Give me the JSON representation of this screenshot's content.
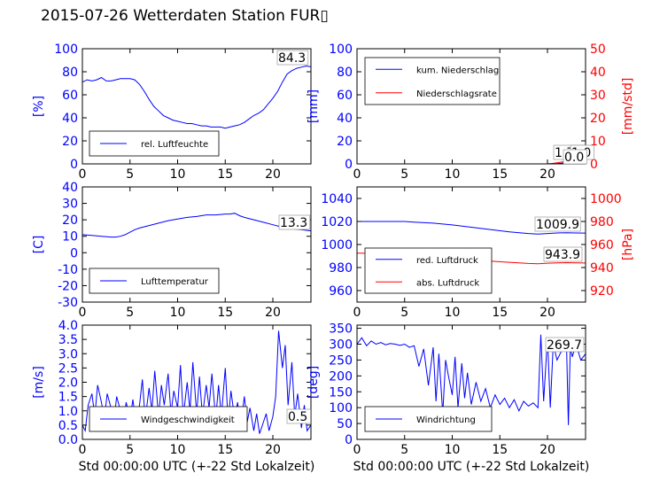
{
  "title": "2015-07-26 Wetterdaten Station FUR▯",
  "colors": {
    "left_axis": "#0000ff",
    "right_axis": "#ff0000",
    "frame": "#000000"
  },
  "chart_data": [
    {
      "type": "line",
      "panel": "humidity",
      "ylabel": "[%]",
      "xlim": [
        0,
        24
      ],
      "xticks": [
        0,
        5,
        10,
        15,
        20
      ],
      "ylim": [
        0,
        100
      ],
      "yticks": [
        0,
        20,
        40,
        60,
        80,
        100
      ],
      "legend": "lower-left",
      "last_value_label": "84.3",
      "series": [
        {
          "name": "rel. Luftfeuchte",
          "color": "#0000ff",
          "x": [
            0,
            0.5,
            1,
            1.5,
            2,
            2.5,
            3,
            3.5,
            4,
            4.5,
            5,
            5.5,
            6,
            6.5,
            7,
            7.5,
            8,
            8.5,
            9,
            9.5,
            10,
            10.5,
            11,
            11.5,
            12,
            12.5,
            13,
            13.5,
            14,
            14.5,
            15,
            15.5,
            16,
            16.5,
            17,
            17.5,
            18,
            18.5,
            19,
            19.5,
            20,
            20.5,
            21,
            21.5,
            22,
            22.5,
            23,
            23.5,
            24
          ],
          "y": [
            71,
            73,
            72,
            73,
            75,
            72,
            72,
            73,
            74,
            74,
            74,
            73,
            69,
            63,
            56,
            50,
            46,
            42,
            40,
            38,
            37,
            36,
            35,
            35,
            34,
            33,
            33,
            32,
            32,
            32,
            31,
            32,
            33,
            34,
            36,
            39,
            42,
            44,
            47,
            52,
            57,
            63,
            71,
            78,
            81,
            83,
            84,
            85,
            84.3
          ]
        }
      ]
    },
    {
      "type": "line",
      "panel": "precipitation",
      "ylabel": "[mm]",
      "ylabel_right": "[mm/std]",
      "xlim": [
        0,
        24
      ],
      "xticks": [
        0,
        5,
        10,
        15,
        20
      ],
      "ylim": [
        0,
        100
      ],
      "yticks": [
        0,
        20,
        40,
        60,
        80,
        100
      ],
      "ylim_right": [
        0,
        50
      ],
      "yticks_right": [
        0,
        10,
        20,
        30,
        40,
        50
      ],
      "legend": "top-left",
      "last_value_labels": [
        "1.70",
        "1.0",
        "0.0"
      ],
      "series": [
        {
          "name": "kum. Niederschlag",
          "color": "#0000ff",
          "axis": "left",
          "x": [
            0,
            20,
            21,
            21.5,
            22,
            24
          ],
          "y": [
            0,
            0,
            0.2,
            0.6,
            1.2,
            1.7
          ]
        },
        {
          "name": "Niederschlagsrate",
          "color": "#ff0000",
          "axis": "right",
          "x": [
            0,
            20,
            20.5,
            21,
            21.5,
            22,
            22.5,
            23,
            24
          ],
          "y": [
            0,
            0,
            0.2,
            0.5,
            0.8,
            1.0,
            0.6,
            0.2,
            0.0
          ]
        }
      ]
    },
    {
      "type": "line",
      "panel": "temperature",
      "ylabel": "[C]",
      "xlim": [
        0,
        24
      ],
      "xticks": [
        0,
        5,
        10,
        15,
        20
      ],
      "ylim": [
        -30,
        40
      ],
      "yticks": [
        -30,
        -20,
        -10,
        0,
        10,
        20,
        30,
        40
      ],
      "legend": "lower-left",
      "last_value_label": "13.3",
      "series": [
        {
          "name": "Lufttemperatur",
          "color": "#0000ff",
          "x": [
            0,
            1,
            2,
            3,
            3.5,
            4,
            4.5,
            5,
            5.5,
            6,
            7,
            8,
            9,
            10,
            11,
            12,
            13,
            14,
            15,
            15.5,
            16,
            16.5,
            17,
            18,
            19,
            20,
            21,
            22,
            23,
            24
          ],
          "y": [
            11,
            10.5,
            10,
            9.5,
            9.5,
            10,
            11,
            12.5,
            14,
            15,
            16.5,
            18,
            19.5,
            20.5,
            21.5,
            22,
            23,
            23,
            23.5,
            23.5,
            24,
            22.5,
            21.5,
            20,
            18.5,
            17,
            15.5,
            14.5,
            14,
            13.3
          ]
        }
      ]
    },
    {
      "type": "line",
      "panel": "pressure",
      "ylabel_right": "[hPa]",
      "xlim": [
        0,
        24
      ],
      "xticks": [
        0,
        5,
        10,
        15,
        20
      ],
      "ylim": [
        950,
        1050
      ],
      "yticks": [
        960,
        980,
        1000,
        1020,
        1040
      ],
      "ylim_right": [
        910,
        1010
      ],
      "yticks_right": [
        920,
        940,
        960,
        980,
        1000
      ],
      "legend": "lower-left",
      "last_value_labels": [
        "1009.9",
        "943.9"
      ],
      "series": [
        {
          "name": "red. Luftdruck",
          "color": "#0000ff",
          "axis": "left",
          "x": [
            0,
            2,
            4,
            5,
            6,
            8,
            10,
            12,
            14,
            16,
            18,
            19,
            20,
            21,
            22,
            23,
            24
          ],
          "y": [
            1020,
            1020,
            1020,
            1020,
            1019.5,
            1018.5,
            1017,
            1015,
            1013,
            1011,
            1009.5,
            1009,
            1009.5,
            1010,
            1010.2,
            1010,
            1009.9
          ]
        },
        {
          "name": "abs. Luftdruck",
          "color": "#ff0000",
          "axis": "right",
          "x": [
            0,
            2,
            4,
            5,
            6,
            8,
            10,
            12,
            14,
            16,
            18,
            19,
            20,
            21,
            22,
            23,
            24
          ],
          "y": [
            952.5,
            952.3,
            952,
            951.8,
            951.3,
            950.3,
            949,
            947.3,
            945.6,
            944.5,
            943.5,
            943.3,
            943.8,
            944,
            944.2,
            944,
            943.9
          ]
        }
      ]
    },
    {
      "type": "line",
      "panel": "wind-speed",
      "ylabel": "[m/s]",
      "xlabel": "Std 00:00:00 UTC (+-22 Std Lokalzeit)",
      "xlim": [
        0,
        24
      ],
      "xticks": [
        0,
        5,
        10,
        15,
        20
      ],
      "ylim": [
        0,
        4
      ],
      "yticks": [
        0.0,
        0.5,
        1.0,
        1.5,
        2.0,
        2.5,
        3.0,
        3.5,
        4.0
      ],
      "legend": "lower-center",
      "last_value_label": "0.5",
      "series": [
        {
          "name": "Windgeschwindigkeit",
          "color": "#0000ff",
          "x": [
            0,
            0.3,
            0.6,
            1,
            1.3,
            1.6,
            2,
            2.3,
            2.6,
            3,
            3.3,
            3.6,
            4,
            4.3,
            4.6,
            5,
            5.3,
            5.6,
            6,
            6.3,
            6.6,
            7,
            7.3,
            7.6,
            8,
            8.3,
            8.6,
            9,
            9.3,
            9.6,
            10,
            10.3,
            10.6,
            11,
            11.3,
            11.6,
            12,
            12.3,
            12.6,
            13,
            13.3,
            13.6,
            14,
            14.3,
            14.6,
            15,
            15.3,
            15.6,
            16,
            16.3,
            16.6,
            17,
            17.3,
            17.6,
            18,
            18.3,
            18.6,
            19,
            19.3,
            19.6,
            20,
            20.3,
            20.6,
            21,
            21.3,
            21.6,
            22,
            22.3,
            22.6,
            23,
            23.3,
            23.6,
            24
          ],
          "y": [
            0.5,
            0.3,
            1.2,
            1.6,
            0.8,
            1.9,
            1.3,
            0.7,
            1.6,
            1.1,
            0.6,
            1.5,
            1.0,
            0.5,
            1.3,
            0.7,
            1.4,
            0.6,
            1.2,
            2.1,
            0.7,
            1.8,
            1.0,
            2.4,
            0.8,
            1.9,
            1.2,
            2.3,
            0.9,
            1.7,
            1.1,
            2.6,
            0.8,
            2.0,
            1.0,
            2.7,
            0.9,
            2.2,
            0.8,
            1.9,
            1.1,
            2.3,
            0.7,
            1.9,
            0.8,
            2.5,
            0.6,
            1.7,
            0.7,
            1.3,
            0.4,
            1.5,
            0.6,
            1.1,
            0.3,
            0.9,
            0.2,
            0.6,
            0.9,
            0.3,
            0.8,
            1.5,
            3.8,
            2.5,
            3.3,
            1.2,
            2.7,
            0.8,
            1.6,
            0.4,
            1.2,
            0.3,
            0.5
          ]
        }
      ]
    },
    {
      "type": "line",
      "panel": "wind-direction",
      "ylabel": "[deg]",
      "xlabel": "Std 00:00:00 UTC (+-22 Std Lokalzeit)",
      "xlim": [
        0,
        24
      ],
      "xticks": [
        0,
        5,
        10,
        15,
        20
      ],
      "ylim": [
        0,
        360
      ],
      "yticks": [
        0,
        50,
        100,
        150,
        200,
        250,
        300,
        350
      ],
      "legend": "lower-left",
      "last_value_label": "269.7",
      "series": [
        {
          "name": "Windrichtung",
          "color": "#0000ff",
          "x": [
            0,
            0.5,
            1,
            1.5,
            2,
            2.5,
            3,
            3.5,
            4,
            4.5,
            5,
            5.5,
            6,
            6.5,
            7,
            7.5,
            8,
            8.3,
            8.6,
            9,
            9.3,
            9.6,
            10,
            10.3,
            10.6,
            11,
            11.3,
            11.6,
            12,
            12.5,
            13,
            13.5,
            14,
            14.5,
            15,
            15.5,
            16,
            16.5,
            17,
            17.5,
            18,
            18.5,
            19,
            19.3,
            19.6,
            20,
            20.3,
            20.6,
            21,
            21.5,
            22,
            22.2,
            22.4,
            22.6,
            23,
            23.5,
            24
          ],
          "y": [
            300,
            320,
            295,
            310,
            300,
            305,
            298,
            302,
            300,
            296,
            300,
            290,
            295,
            230,
            285,
            170,
            290,
            120,
            270,
            80,
            250,
            200,
            140,
            260,
            100,
            240,
            130,
            210,
            110,
            180,
            120,
            160,
            100,
            140,
            110,
            130,
            100,
            125,
            90,
            120,
            105,
            115,
            100,
            330,
            120,
            320,
            100,
            300,
            250,
            280,
            300,
            45,
            290,
            260,
            300,
            250,
            269.7
          ]
        }
      ]
    }
  ]
}
